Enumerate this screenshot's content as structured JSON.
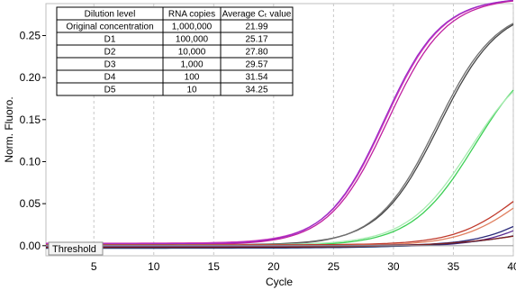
{
  "chart_data": {
    "type": "line",
    "xlabel": "Cycle",
    "ylabel": "Norm. Fluoro.",
    "xlim": [
      1,
      40
    ],
    "ylim": [
      -0.012,
      0.288
    ],
    "x_ticks": [
      "5",
      "10",
      "15",
      "20",
      "25",
      "30",
      "35",
      "40"
    ],
    "y_ticks": [
      "0.00",
      "0.05",
      "0.10",
      "0.15",
      "0.20",
      "0.25"
    ],
    "grid": "vertical dashed",
    "threshold": {
      "label": "Threshold",
      "value": 0.0
    },
    "table": {
      "columns": [
        "Dilution level",
        "RNA copies",
        "Average Cₜ value"
      ],
      "rows": [
        [
          "Original concentration",
          "1,000,000",
          "21.99"
        ],
        [
          "D1",
          "100,000",
          "25.17"
        ],
        [
          "D2",
          "10,000",
          "27.80"
        ],
        [
          "D3",
          "1,000",
          "29.57"
        ],
        [
          "D4",
          "100",
          "31.54"
        ],
        [
          "D5",
          "10",
          "34.25"
        ]
      ]
    },
    "series": [
      {
        "color": "#d63fb8",
        "mid": 29.3,
        "k": 0.42,
        "top": 0.295,
        "base": 0.003
      },
      {
        "color": "#9b2cc9",
        "mid": 29.2,
        "k": 0.42,
        "top": 0.295,
        "base": 0.002
      },
      {
        "color": "#c020a0",
        "mid": 29.5,
        "k": 0.41,
        "top": 0.295,
        "base": 0.001
      },
      {
        "color": "#454545",
        "mid": 33.8,
        "k": 0.4,
        "top": 0.285,
        "base": 0.001
      },
      {
        "color": "#707070",
        "mid": 33.6,
        "k": 0.4,
        "top": 0.285,
        "base": 0.0
      },
      {
        "color": "#3ccf54",
        "mid": 36.8,
        "k": 0.38,
        "top": 0.24,
        "base": 0.0
      },
      {
        "color": "#a6ebb0",
        "mid": 36.4,
        "k": 0.38,
        "top": 0.23,
        "base": 0.001
      },
      {
        "color": "#c0392b",
        "mid": 40.5,
        "k": 0.38,
        "top": 0.115,
        "base": 0.001
      },
      {
        "color": "#e08060",
        "mid": 41.0,
        "k": 0.38,
        "top": 0.11,
        "base": 0.0
      },
      {
        "color": "#2a2a7a",
        "mid": 42.5,
        "k": 0.4,
        "top": 0.085,
        "base": 0.0
      },
      {
        "color": "#5a2a90",
        "mid": 43.0,
        "k": 0.4,
        "top": 0.08,
        "base": -0.001
      },
      {
        "color": "#103070",
        "mid": 50.0,
        "k": 0.2,
        "top": 0.12,
        "base": -0.003
      },
      {
        "color": "#802020",
        "mid": 50.0,
        "k": 0.2,
        "top": 0.11,
        "base": -0.002
      }
    ]
  }
}
